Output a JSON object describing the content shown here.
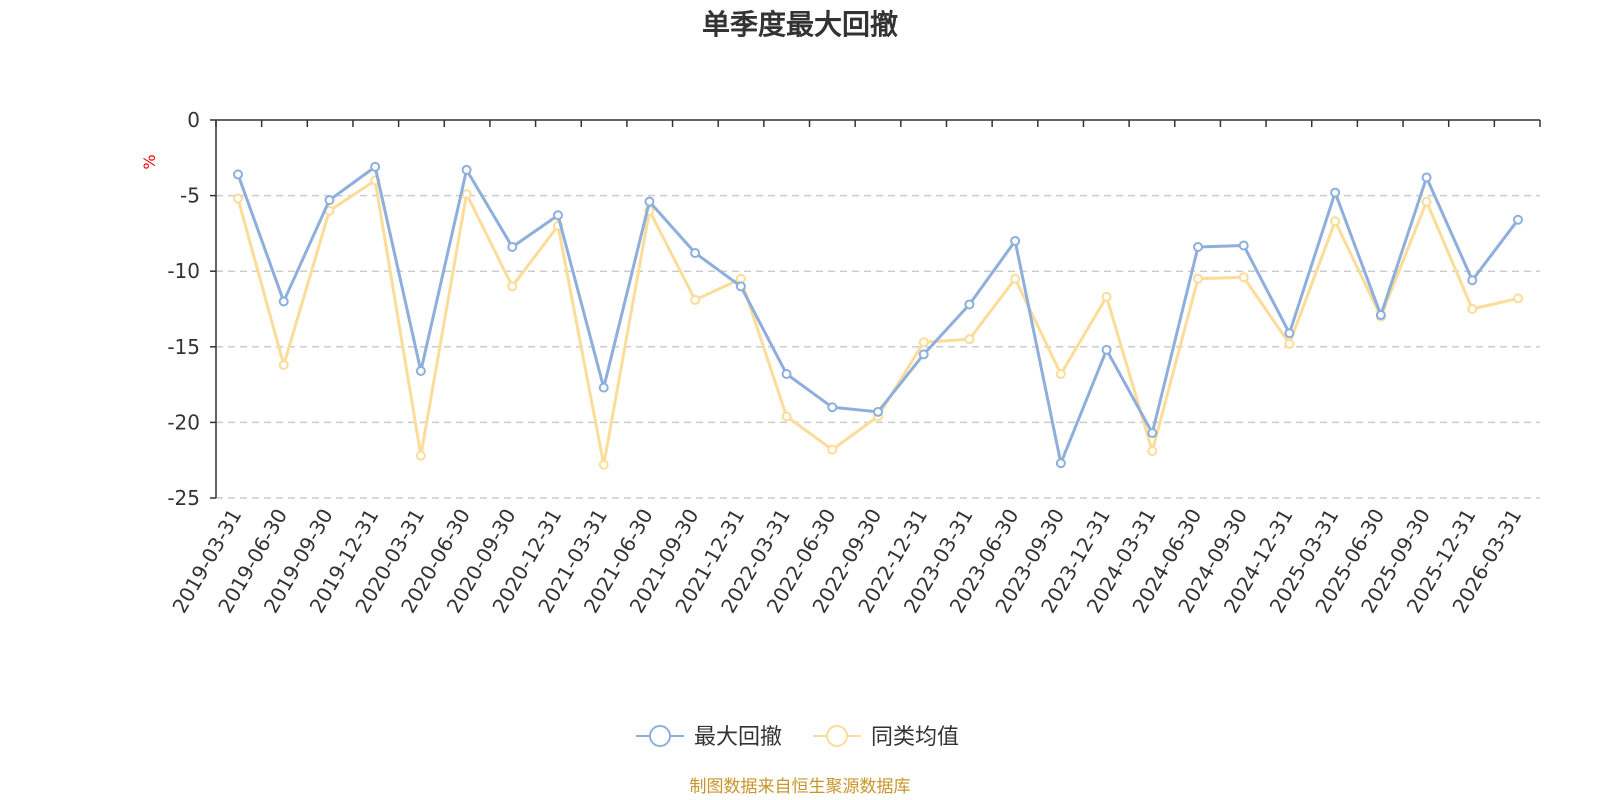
{
  "chart_data": {
    "type": "line",
    "title": "单季度最大回撤",
    "ylabel": "%",
    "ylim": [
      -25,
      0
    ],
    "yticks": [
      0,
      -5,
      -10,
      -15,
      -20,
      -25
    ],
    "grid": true,
    "legend_position": "bottom",
    "categories": [
      "2019-03-31",
      "2019-06-30",
      "2019-09-30",
      "2019-12-31",
      "2020-03-31",
      "2020-06-30",
      "2020-09-30",
      "2020-12-31",
      "2021-03-31",
      "2021-06-30",
      "2021-09-30",
      "2021-12-31",
      "2022-03-31",
      "2022-06-30",
      "2022-09-30",
      "2022-12-31",
      "2023-03-31",
      "2023-06-30",
      "2023-09-30",
      "2023-12-31",
      "2024-03-31",
      "2024-06-30",
      "2024-09-30",
      "2024-12-31",
      "2025-03-31",
      "2025-06-30",
      "2025-09-30",
      "2025-12-31",
      "2026-03-31"
    ],
    "series": [
      {
        "name": "最大回撤",
        "color": "#8eaedc",
        "values": [
          -3.6,
          -12.0,
          -5.3,
          -3.1,
          -16.6,
          -3.3,
          -8.4,
          -6.3,
          -17.7,
          -5.4,
          -8.8,
          -11.0,
          -16.8,
          -19.0,
          -19.3,
          -15.5,
          -12.2,
          -8.0,
          -22.7,
          -15.2,
          -20.7,
          -8.4,
          -8.3,
          -14.1,
          -4.8,
          -12.9,
          -3.8,
          -10.6,
          -6.6
        ]
      },
      {
        "name": "同类均值",
        "color": "#fbdc98",
        "values": [
          -5.2,
          -16.2,
          -6.0,
          -4.0,
          -22.2,
          -4.9,
          -11.0,
          -7.0,
          -22.8,
          -6.0,
          -11.9,
          -10.5,
          -19.6,
          -21.8,
          -19.6,
          -14.7,
          -14.5,
          -10.5,
          -16.8,
          -11.7,
          -21.9,
          -10.5,
          -10.4,
          -14.8,
          -6.7,
          -13.0,
          -5.4,
          -12.5,
          -11.8
        ]
      }
    ],
    "source": "制图数据来自恒生聚源数据库",
    "source_color": "#c8952a",
    "axis_unit_color": "#ff0000"
  }
}
